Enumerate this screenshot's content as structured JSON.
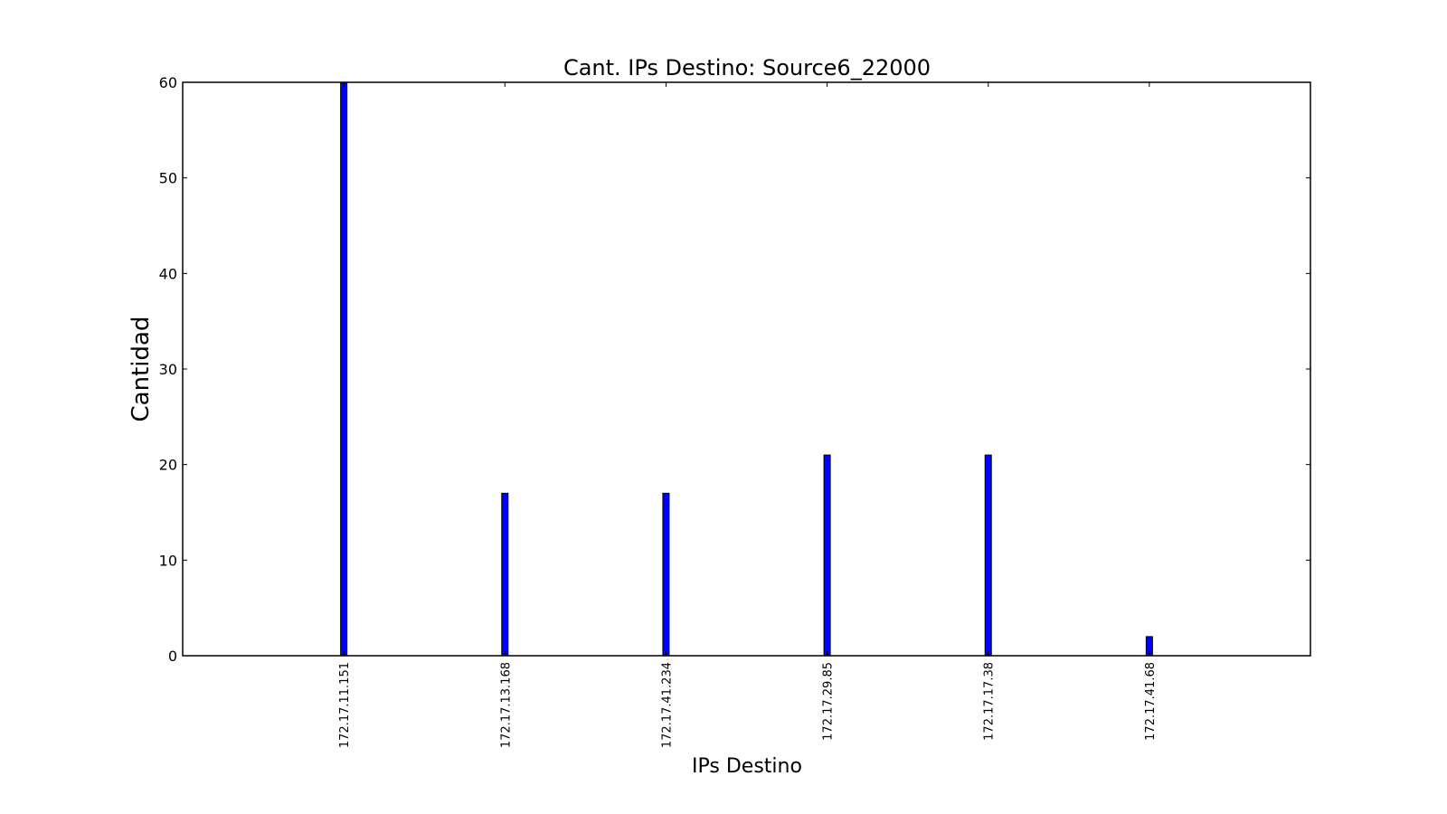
{
  "chart_data": {
    "type": "bar",
    "title": "Cant. IPs Destino: Source6_22000",
    "xlabel": "IPs Destino",
    "ylabel": "Cantidad",
    "categories": [
      "172.17.11.151",
      "172.17.13.168",
      "172.17.41.234",
      "172.17.29.85",
      "172.17.17.38",
      "172.17.41.68"
    ],
    "values": [
      60,
      17,
      17,
      21,
      21,
      2
    ],
    "ylim": [
      0,
      60
    ],
    "yticks": [
      0,
      10,
      20,
      30,
      40,
      50,
      60
    ],
    "bar_color": "#0000ff",
    "grid": false,
    "legend": "none"
  }
}
